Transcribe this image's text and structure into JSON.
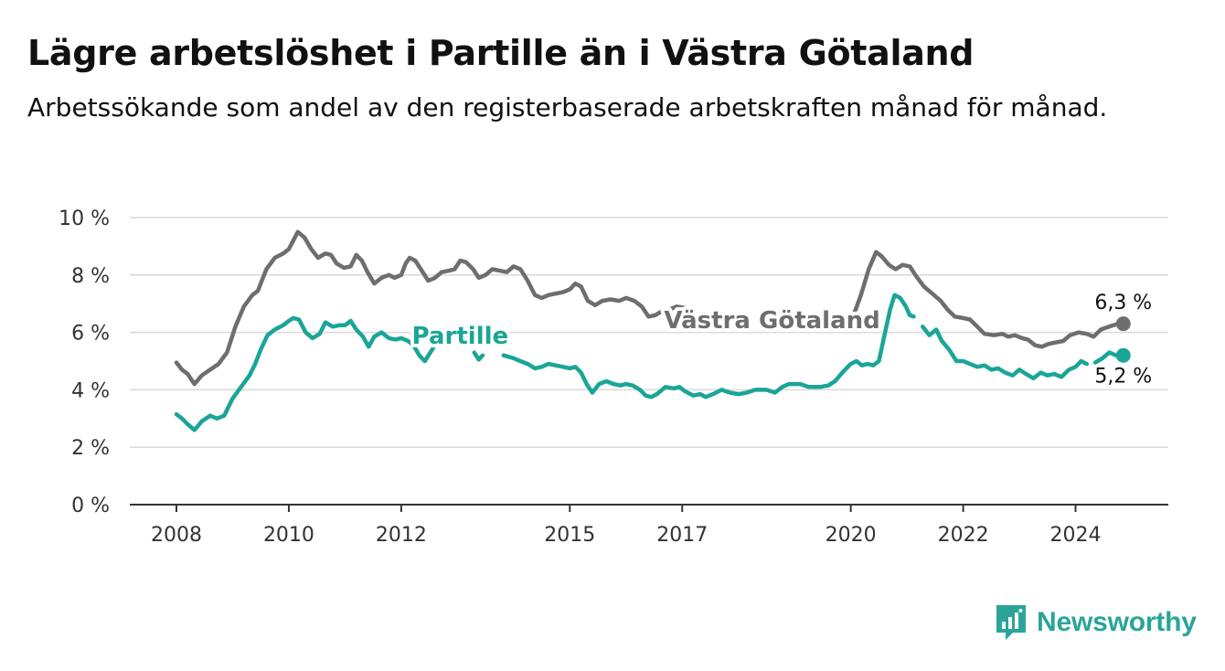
{
  "header": {
    "title": "Lägre arbetslöshet i Partille än i Västra Götaland",
    "subtitle": "Arbetssökande som andel av den registerbaserade arbetskraften månad för månad."
  },
  "brand": {
    "name": "Newsworthy",
    "color": "#2aa598"
  },
  "chart_data": {
    "type": "line",
    "title": "Lägre arbetslöshet i Partille än i Västra Götaland",
    "subtitle": "Arbetssökande som andel av den registerbaserade arbetskraften månad för månad.",
    "xlabel": "",
    "ylabel": "",
    "xlim": [
      2008,
      2025
    ],
    "ylim": [
      0,
      10
    ],
    "y_ticks": [
      0,
      2,
      4,
      6,
      8,
      10
    ],
    "y_tick_labels": [
      "0 %",
      "2 %",
      "4 %",
      "6 %",
      "8 %",
      "10 %"
    ],
    "x_ticks": [
      2008,
      2010,
      2012,
      2015,
      2017,
      2020,
      2022,
      2024
    ],
    "x_tick_labels": [
      "2008",
      "2010",
      "2012",
      "2015",
      "2017",
      "2020",
      "2022",
      "2024"
    ],
    "grid": true,
    "legend": "direct labels",
    "series": [
      {
        "name": "Västra Götaland",
        "color": "#6e6e70",
        "end_label": "6,3 %",
        "points": [
          [
            2008.0,
            4.95
          ],
          [
            2008.1,
            4.7
          ],
          [
            2008.2,
            4.55
          ],
          [
            2008.32,
            4.2
          ],
          [
            2008.45,
            4.5
          ],
          [
            2008.6,
            4.7
          ],
          [
            2008.75,
            4.9
          ],
          [
            2008.9,
            5.3
          ],
          [
            2009.05,
            6.2
          ],
          [
            2009.2,
            6.9
          ],
          [
            2009.35,
            7.3
          ],
          [
            2009.45,
            7.45
          ],
          [
            2009.6,
            8.2
          ],
          [
            2009.75,
            8.6
          ],
          [
            2009.9,
            8.75
          ],
          [
            2010.0,
            8.9
          ],
          [
            2010.08,
            9.2
          ],
          [
            2010.16,
            9.5
          ],
          [
            2010.28,
            9.3
          ],
          [
            2010.4,
            8.9
          ],
          [
            2010.52,
            8.6
          ],
          [
            2010.65,
            8.75
          ],
          [
            2010.75,
            8.7
          ],
          [
            2010.85,
            8.4
          ],
          [
            2010.98,
            8.25
          ],
          [
            2011.1,
            8.3
          ],
          [
            2011.2,
            8.7
          ],
          [
            2011.3,
            8.5
          ],
          [
            2011.4,
            8.1
          ],
          [
            2011.52,
            7.7
          ],
          [
            2011.65,
            7.9
          ],
          [
            2011.78,
            8.0
          ],
          [
            2011.88,
            7.9
          ],
          [
            2012.0,
            8.0
          ],
          [
            2012.08,
            8.4
          ],
          [
            2012.15,
            8.6
          ],
          [
            2012.25,
            8.5
          ],
          [
            2012.35,
            8.2
          ],
          [
            2012.48,
            7.8
          ],
          [
            2012.6,
            7.9
          ],
          [
            2012.72,
            8.1
          ],
          [
            2012.85,
            8.15
          ],
          [
            2012.95,
            8.2
          ],
          [
            2013.05,
            8.5
          ],
          [
            2013.15,
            8.45
          ],
          [
            2013.28,
            8.2
          ],
          [
            2013.38,
            7.9
          ],
          [
            2013.5,
            8.0
          ],
          [
            2013.62,
            8.2
          ],
          [
            2013.75,
            8.15
          ],
          [
            2013.88,
            8.1
          ],
          [
            2014.0,
            8.3
          ],
          [
            2014.12,
            8.2
          ],
          [
            2014.25,
            7.8
          ],
          [
            2014.38,
            7.3
          ],
          [
            2014.5,
            7.2
          ],
          [
            2014.62,
            7.3
          ],
          [
            2014.75,
            7.35
          ],
          [
            2014.88,
            7.4
          ],
          [
            2015.0,
            7.5
          ],
          [
            2015.1,
            7.7
          ],
          [
            2015.2,
            7.6
          ],
          [
            2015.32,
            7.1
          ],
          [
            2015.45,
            6.95
          ],
          [
            2015.58,
            7.1
          ],
          [
            2015.72,
            7.15
          ],
          [
            2015.88,
            7.1
          ],
          [
            2016.0,
            7.2
          ],
          [
            2016.15,
            7.1
          ],
          [
            2016.28,
            6.9
          ],
          [
            2016.4,
            6.55
          ],
          [
            2016.52,
            6.6
          ],
          [
            2016.65,
            6.75
          ],
          [
            2016.78,
            6.8
          ],
          [
            2016.9,
            6.9
          ],
          [
            2017.05,
            6.85
          ],
          [
            2017.2,
            6.6
          ],
          [
            2017.3,
            6.4
          ]
        ],
        "points_tail": [
          [
            2020.05,
            6.6
          ],
          [
            2020.18,
            7.3
          ],
          [
            2020.32,
            8.2
          ],
          [
            2020.45,
            8.8
          ],
          [
            2020.55,
            8.65
          ],
          [
            2020.68,
            8.35
          ],
          [
            2020.8,
            8.2
          ],
          [
            2020.92,
            8.35
          ],
          [
            2021.05,
            8.3
          ],
          [
            2021.15,
            8.0
          ],
          [
            2021.3,
            7.6
          ],
          [
            2021.45,
            7.35
          ],
          [
            2021.6,
            7.1
          ],
          [
            2021.72,
            6.8
          ],
          [
            2021.85,
            6.55
          ],
          [
            2022.0,
            6.5
          ],
          [
            2022.12,
            6.45
          ],
          [
            2022.25,
            6.2
          ],
          [
            2022.38,
            5.95
          ],
          [
            2022.55,
            5.9
          ],
          [
            2022.7,
            5.95
          ],
          [
            2022.8,
            5.85
          ],
          [
            2022.92,
            5.9
          ],
          [
            2023.05,
            5.8
          ],
          [
            2023.15,
            5.75
          ],
          [
            2023.28,
            5.55
          ],
          [
            2023.4,
            5.5
          ],
          [
            2023.52,
            5.6
          ],
          [
            2023.65,
            5.65
          ],
          [
            2023.78,
            5.7
          ],
          [
            2023.9,
            5.9
          ],
          [
            2024.05,
            6.0
          ],
          [
            2024.2,
            5.95
          ],
          [
            2024.32,
            5.85
          ],
          [
            2024.45,
            6.1
          ],
          [
            2024.6,
            6.2
          ],
          [
            2024.75,
            6.3
          ],
          [
            2024.85,
            6.3
          ]
        ]
      },
      {
        "name": "Partille",
        "color": "#1aa597",
        "end_label": "5,2 %",
        "points": [
          [
            2008.0,
            3.15
          ],
          [
            2008.1,
            3.0
          ],
          [
            2008.2,
            2.8
          ],
          [
            2008.32,
            2.6
          ],
          [
            2008.45,
            2.9
          ],
          [
            2008.6,
            3.1
          ],
          [
            2008.72,
            3.0
          ],
          [
            2008.85,
            3.1
          ],
          [
            2009.0,
            3.7
          ],
          [
            2009.15,
            4.1
          ],
          [
            2009.3,
            4.5
          ],
          [
            2009.4,
            4.9
          ],
          [
            2009.5,
            5.4
          ],
          [
            2009.62,
            5.9
          ],
          [
            2009.75,
            6.1
          ],
          [
            2009.9,
            6.25
          ],
          [
            2010.0,
            6.4
          ],
          [
            2010.08,
            6.5
          ],
          [
            2010.18,
            6.45
          ],
          [
            2010.3,
            6.0
          ],
          [
            2010.42,
            5.8
          ],
          [
            2010.55,
            5.95
          ],
          [
            2010.65,
            6.35
          ],
          [
            2010.78,
            6.2
          ],
          [
            2010.9,
            6.25
          ],
          [
            2011.0,
            6.25
          ],
          [
            2011.1,
            6.4
          ],
          [
            2011.2,
            6.1
          ],
          [
            2011.32,
            5.85
          ],
          [
            2011.42,
            5.5
          ],
          [
            2011.52,
            5.85
          ],
          [
            2011.65,
            6.0
          ],
          [
            2011.78,
            5.8
          ],
          [
            2011.9,
            5.75
          ],
          [
            2012.0,
            5.8
          ],
          [
            2012.12,
            5.7
          ],
          [
            2012.22,
            5.55
          ],
          [
            2012.32,
            5.2
          ],
          [
            2012.42,
            5.0
          ],
          [
            2012.55,
            5.4
          ],
          [
            2012.65,
            5.7
          ],
          [
            2012.75,
            5.6
          ]
        ],
        "points_mid": [
          [
            2013.3,
            5.3
          ],
          [
            2013.38,
            5.05
          ],
          [
            2013.45,
            5.2
          ]
        ],
        "points_mid2": [
          [
            2013.82,
            5.2
          ],
          [
            2014.0,
            5.1
          ],
          [
            2014.12,
            5.0
          ],
          [
            2014.25,
            4.9
          ],
          [
            2014.38,
            4.75
          ],
          [
            2014.5,
            4.8
          ],
          [
            2014.62,
            4.9
          ],
          [
            2014.75,
            4.85
          ],
          [
            2014.88,
            4.8
          ],
          [
            2015.0,
            4.75
          ],
          [
            2015.1,
            4.8
          ],
          [
            2015.2,
            4.6
          ],
          [
            2015.3,
            4.2
          ],
          [
            2015.4,
            3.9
          ],
          [
            2015.52,
            4.2
          ],
          [
            2015.65,
            4.3
          ],
          [
            2015.78,
            4.2
          ],
          [
            2015.9,
            4.15
          ],
          [
            2016.0,
            4.2
          ],
          [
            2016.12,
            4.15
          ],
          [
            2016.25,
            4.0
          ],
          [
            2016.35,
            3.8
          ],
          [
            2016.45,
            3.75
          ],
          [
            2016.55,
            3.85
          ],
          [
            2016.7,
            4.1
          ],
          [
            2016.85,
            4.05
          ],
          [
            2016.95,
            4.1
          ],
          [
            2017.05,
            3.95
          ],
          [
            2017.2,
            3.8
          ],
          [
            2017.32,
            3.85
          ],
          [
            2017.42,
            3.75
          ],
          [
            2017.55,
            3.85
          ],
          [
            2017.7,
            4.0
          ],
          [
            2017.85,
            3.9
          ],
          [
            2018.0,
            3.85
          ],
          [
            2018.15,
            3.9
          ],
          [
            2018.3,
            4.0
          ],
          [
            2018.5,
            4.0
          ],
          [
            2018.65,
            3.9
          ],
          [
            2018.78,
            4.1
          ],
          [
            2018.9,
            4.2
          ],
          [
            2019.1,
            4.2
          ],
          [
            2019.25,
            4.1
          ],
          [
            2019.45,
            4.1
          ],
          [
            2019.6,
            4.15
          ],
          [
            2019.72,
            4.3
          ],
          [
            2019.85,
            4.6
          ],
          [
            2020.0,
            4.9
          ],
          [
            2020.1,
            5.0
          ],
          [
            2020.2,
            4.85
          ],
          [
            2020.3,
            4.9
          ],
          [
            2020.4,
            4.85
          ],
          [
            2020.5,
            5.0
          ],
          [
            2020.6,
            5.9
          ],
          [
            2020.7,
            6.8
          ],
          [
            2020.78,
            7.3
          ],
          [
            2020.88,
            7.2
          ],
          [
            2020.98,
            6.9
          ],
          [
            2021.05,
            6.6
          ],
          [
            2021.12,
            6.55
          ]
        ],
        "points_tail": [
          [
            2021.28,
            6.2
          ],
          [
            2021.4,
            5.9
          ],
          [
            2021.52,
            6.1
          ],
          [
            2021.62,
            5.7
          ],
          [
            2021.75,
            5.4
          ],
          [
            2021.88,
            5.0
          ],
          [
            2022.0,
            5.0
          ],
          [
            2022.12,
            4.9
          ],
          [
            2022.25,
            4.8
          ],
          [
            2022.38,
            4.85
          ],
          [
            2022.5,
            4.7
          ],
          [
            2022.62,
            4.75
          ],
          [
            2022.75,
            4.6
          ],
          [
            2022.88,
            4.5
          ],
          [
            2023.0,
            4.7
          ],
          [
            2023.12,
            4.55
          ],
          [
            2023.25,
            4.4
          ],
          [
            2023.38,
            4.6
          ],
          [
            2023.5,
            4.5
          ],
          [
            2023.62,
            4.55
          ],
          [
            2023.75,
            4.45
          ],
          [
            2023.88,
            4.7
          ],
          [
            2024.0,
            4.8
          ],
          [
            2024.1,
            5.0
          ],
          [
            2024.2,
            4.9
          ]
        ],
        "points_end": [
          [
            2024.35,
            4.95
          ],
          [
            2024.48,
            5.1
          ],
          [
            2024.6,
            5.3
          ],
          [
            2024.72,
            5.2
          ],
          [
            2024.85,
            5.2
          ]
        ]
      }
    ],
    "annotations": [
      {
        "text": "Partille",
        "series": "Partille",
        "x": 2013.05,
        "y": 5.6
      },
      {
        "text": "Västra Götaland",
        "series": "Västra Götaland",
        "x": 2018.6,
        "y": 6.15
      }
    ]
  }
}
